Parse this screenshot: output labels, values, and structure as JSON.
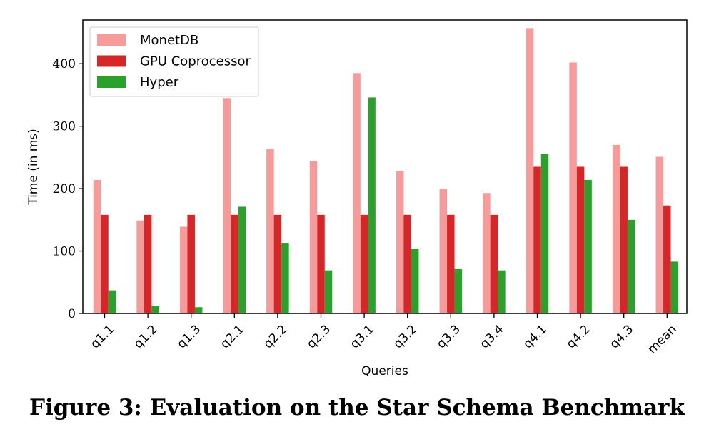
{
  "caption": "Figure 3: Evaluation on the Star Schema Benchmark",
  "chart_data": {
    "type": "bar",
    "title": "",
    "xlabel": "Queries",
    "ylabel": "Time (in ms)",
    "ylim": [
      0,
      470
    ],
    "yticks": [
      "0",
      "100",
      "200",
      "300",
      "400"
    ],
    "categories": [
      "q1.1",
      "q1.2",
      "q1.3",
      "q2.1",
      "q2.2",
      "q2.3",
      "q3.1",
      "q3.2",
      "q3.3",
      "q3.4",
      "q4.1",
      "q4.2",
      "q4.3",
      "mean"
    ],
    "series": [
      {
        "name": "MonetDB",
        "color": "#f79a9a",
        "values": [
          214,
          149,
          139,
          345,
          263,
          244,
          385,
          228,
          200,
          193,
          457,
          402,
          270,
          251
        ]
      },
      {
        "name": "GPU Coprocessor",
        "color": "#d62728",
        "values": [
          158,
          158,
          158,
          158,
          158,
          158,
          158,
          158,
          158,
          158,
          235,
          235,
          235,
          173
        ]
      },
      {
        "name": "Hyper",
        "color": "#2ca02c",
        "values": [
          37,
          12,
          10,
          171,
          112,
          69,
          346,
          103,
          71,
          69,
          255,
          214,
          150,
          83
        ]
      }
    ],
    "legend_position": "top-left",
    "grid": false
  }
}
